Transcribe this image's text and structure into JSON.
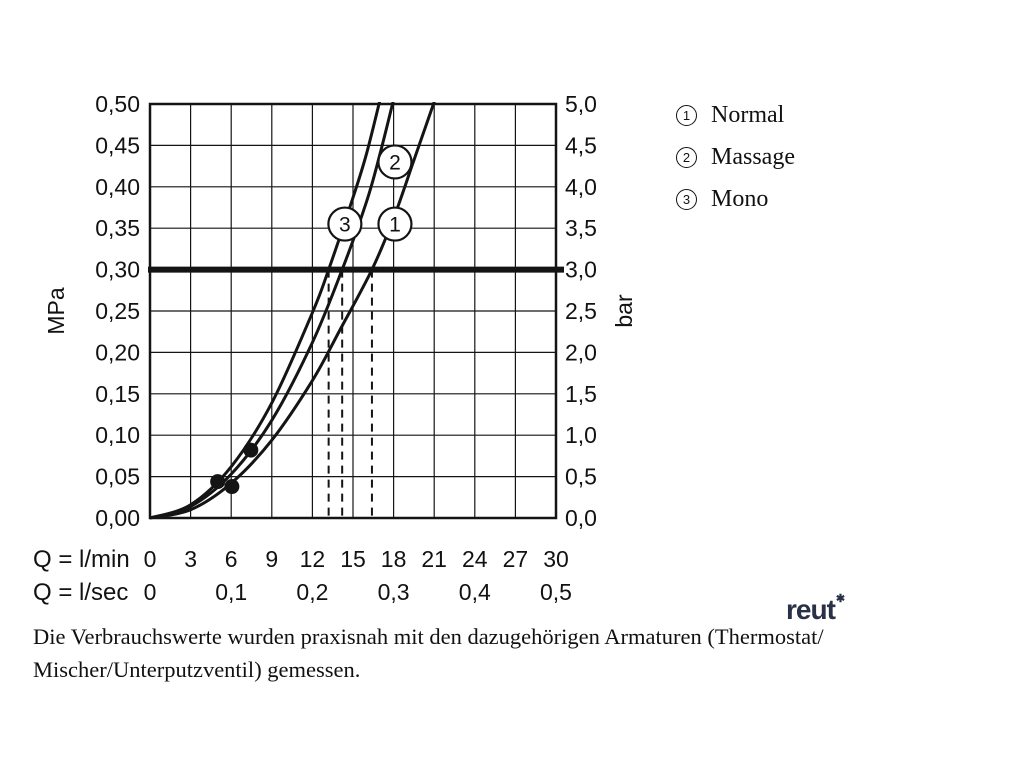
{
  "legend": {
    "items": [
      {
        "num": "1",
        "label": "Normal"
      },
      {
        "num": "2",
        "label": "Massage"
      },
      {
        "num": "3",
        "label": "Mono"
      }
    ]
  },
  "caption": {
    "line1": "Die Verbrauchswerte wurden praxisnah mit den dazugehörigen Armaturen (Thermostat/",
    "line2": "Mischer/Unterputzventil) gemessen."
  },
  "logo": {
    "text": "reut",
    "mark": "✱"
  },
  "chart_data": {
    "type": "line",
    "title": "",
    "grid": true,
    "line_color": "#141414",
    "x_axis": {
      "label": "Q = l/min",
      "min": 0,
      "max": 30,
      "ticks": [
        {
          "v": 0,
          "label": "0"
        },
        {
          "v": 3,
          "label": "3"
        },
        {
          "v": 6,
          "label": "6"
        },
        {
          "v": 9,
          "label": "9"
        },
        {
          "v": 12,
          "label": "12"
        },
        {
          "v": 15,
          "label": "15"
        },
        {
          "v": 18,
          "label": "18"
        },
        {
          "v": 21,
          "label": "21"
        },
        {
          "v": 24,
          "label": "24"
        },
        {
          "v": 27,
          "label": "27"
        },
        {
          "v": 30,
          "label": "30"
        }
      ]
    },
    "x_axis_secondary": {
      "label": "Q = l/sec",
      "ticks": [
        {
          "v": 0,
          "label": "0"
        },
        {
          "v": 6,
          "label": "0,1"
        },
        {
          "v": 12,
          "label": "0,2"
        },
        {
          "v": 18,
          "label": "0,3"
        },
        {
          "v": 24,
          "label": "0,4"
        },
        {
          "v": 30,
          "label": "0,5"
        }
      ]
    },
    "y_axis_left": {
      "label": "MPa",
      "min": 0,
      "max": 0.5,
      "ticks": [
        {
          "v": 0.5,
          "label": "0,50"
        },
        {
          "v": 0.45,
          "label": "0,45"
        },
        {
          "v": 0.4,
          "label": "0,40"
        },
        {
          "v": 0.35,
          "label": "0,35"
        },
        {
          "v": 0.3,
          "label": "0,30"
        },
        {
          "v": 0.25,
          "label": "0,25"
        },
        {
          "v": 0.2,
          "label": "0,20"
        },
        {
          "v": 0.15,
          "label": "0,15"
        },
        {
          "v": 0.1,
          "label": "0,10"
        },
        {
          "v": 0.05,
          "label": "0,05"
        },
        {
          "v": 0.0,
          "label": "0,00"
        }
      ]
    },
    "y_axis_right": {
      "label": "bar",
      "ticks": [
        {
          "v": 0.5,
          "label": "5,0"
        },
        {
          "v": 0.45,
          "label": "4,5"
        },
        {
          "v": 0.4,
          "label": "4,0"
        },
        {
          "v": 0.35,
          "label": "3,5"
        },
        {
          "v": 0.3,
          "label": "3,0"
        },
        {
          "v": 0.25,
          "label": "2,5"
        },
        {
          "v": 0.2,
          "label": "2,0"
        },
        {
          "v": 0.15,
          "label": "1,5"
        },
        {
          "v": 0.1,
          "label": "1,0"
        },
        {
          "v": 0.05,
          "label": "0,5"
        },
        {
          "v": 0.0,
          "label": "0,0"
        }
      ]
    },
    "reference_line": {
      "mpa": 0.3,
      "bar": 3.0
    },
    "dashed_lines_lmin": [
      13.2,
      14.2,
      16.4
    ],
    "series": [
      {
        "num": "1",
        "name": "Normal",
        "points": [
          [
            0,
            0
          ],
          [
            3,
            0.01
          ],
          [
            6,
            0.042
          ],
          [
            9,
            0.094
          ],
          [
            12,
            0.166
          ],
          [
            14,
            0.226
          ],
          [
            16.4,
            0.3
          ],
          [
            18,
            0.362
          ],
          [
            19.5,
            0.432
          ],
          [
            21.2,
            0.512
          ]
        ]
      },
      {
        "num": "2",
        "name": "Massage",
        "points": [
          [
            0,
            0
          ],
          [
            3,
            0.014
          ],
          [
            6,
            0.053
          ],
          [
            9,
            0.118
          ],
          [
            12,
            0.212
          ],
          [
            14.2,
            0.3
          ],
          [
            16,
            0.382
          ],
          [
            17,
            0.44
          ],
          [
            18.1,
            0.512
          ]
        ]
      },
      {
        "num": "3",
        "name": "Mono",
        "points": [
          [
            0,
            0
          ],
          [
            3,
            0.016
          ],
          [
            6,
            0.062
          ],
          [
            9,
            0.139
          ],
          [
            12,
            0.248
          ],
          [
            13.2,
            0.3
          ],
          [
            15,
            0.387
          ],
          [
            16,
            0.44
          ],
          [
            17.1,
            0.512
          ]
        ]
      }
    ],
    "curve_labels": [
      {
        "num": "1",
        "lmin": 18.1,
        "mpa": 0.355
      },
      {
        "num": "2",
        "lmin": 18.1,
        "mpa": 0.43
      },
      {
        "num": "3",
        "lmin": 14.4,
        "mpa": 0.355
      }
    ],
    "markers_lmin_mpa": [
      [
        5.0,
        0.044
      ],
      [
        6.05,
        0.038
      ],
      [
        7.45,
        0.082
      ]
    ]
  }
}
